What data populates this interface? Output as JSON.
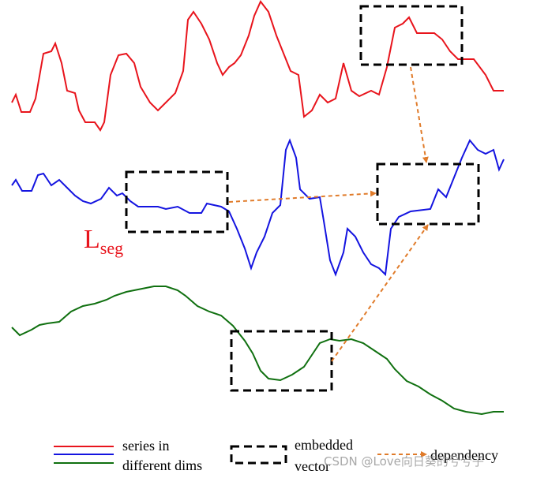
{
  "label": {
    "main": "L",
    "sub": "seg"
  },
  "legend": {
    "series": [
      "series in",
      "different dims"
    ],
    "vector": [
      "embedded",
      "vector"
    ],
    "dependency": "dependency"
  },
  "watermark": "CSDN @Love向日葵的兮兮子"
}
